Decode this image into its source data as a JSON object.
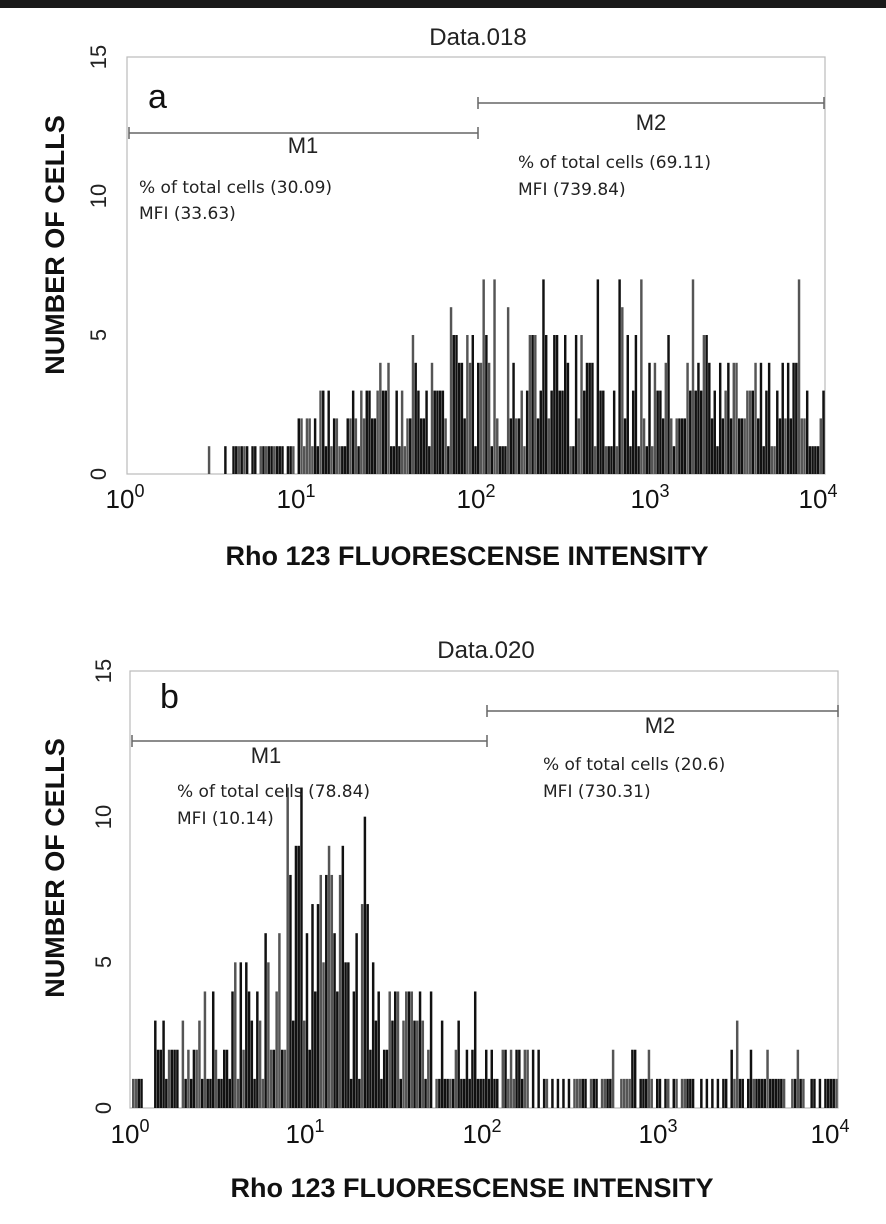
{
  "chart_data": [
    {
      "type": "bar",
      "panel_label": "a",
      "title": "Data.018",
      "xlabel": "Rho 123 FLUORESCENSE INTENSITY",
      "ylabel": "NUMBER OF CELLS",
      "x_scale": "log10",
      "xlim": [
        1,
        10000
      ],
      "ylim": [
        0,
        15
      ],
      "x_ticks": [
        {
          "base": "10",
          "exp": "0"
        },
        {
          "base": "10",
          "exp": "1"
        },
        {
          "base": "10",
          "exp": "2"
        },
        {
          "base": "10",
          "exp": "3"
        },
        {
          "base": "10",
          "exp": "4"
        }
      ],
      "y_ticks": [
        "0",
        "5",
        "10",
        "15"
      ],
      "markers": [
        {
          "label": "M1",
          "range": [
            1,
            100
          ],
          "level": 12.2,
          "lines": [
            "% of total cells (30.09)",
            "MFI (33.63)"
          ]
        },
        {
          "label": "M2",
          "range": [
            100,
            10000
          ],
          "level": 13.3,
          "lines": [
            "% of total cells (69.11)",
            "MFI (739.84)"
          ]
        }
      ],
      "histogram": {
        "n_bins": 256,
        "profile": [
          [
            1,
            0
          ],
          [
            1.7,
            0.1
          ],
          [
            3,
            0.3
          ],
          [
            6,
            0.8
          ],
          [
            10,
            1.3
          ],
          [
            20,
            2.0
          ],
          [
            40,
            2.5
          ],
          [
            100,
            2.9
          ],
          [
            300,
            3.1
          ],
          [
            1000,
            2.9
          ],
          [
            3000,
            2.5
          ],
          [
            10000,
            2.2
          ]
        ],
        "peak_max": 7
      }
    },
    {
      "type": "bar",
      "panel_label": "b",
      "title": "Data.020",
      "xlabel": "Rho 123 FLUORESCENSE INTENSITY",
      "ylabel": "NUMBER OF CELLS",
      "x_scale": "log10",
      "xlim": [
        1,
        10000
      ],
      "ylim": [
        0,
        15
      ],
      "x_ticks": [
        {
          "base": "10",
          "exp": "0"
        },
        {
          "base": "10",
          "exp": "1"
        },
        {
          "base": "10",
          "exp": "2"
        },
        {
          "base": "10",
          "exp": "3"
        },
        {
          "base": "10",
          "exp": "4"
        }
      ],
      "y_ticks": [
        "0",
        "5",
        "10",
        "15"
      ],
      "markers": [
        {
          "label": "M1",
          "range": [
            1,
            100
          ],
          "level": 12.2,
          "lines": [
            "% of total cells (78.84)",
            "MFI (10.14)"
          ]
        },
        {
          "label": "M2",
          "range": [
            100,
            10000
          ],
          "level": 13.3,
          "lines": [
            "% of total cells (20.6)",
            "MFI (730.31)"
          ]
        }
      ],
      "histogram": {
        "n_bins": 256,
        "profile": [
          [
            1,
            1.2
          ],
          [
            2,
            1.5
          ],
          [
            4,
            3.0
          ],
          [
            7,
            5.0
          ],
          [
            12,
            5.6
          ],
          [
            20,
            4.4
          ],
          [
            35,
            2.6
          ],
          [
            60,
            1.8
          ],
          [
            100,
            1.3
          ],
          [
            300,
            0.9
          ],
          [
            1000,
            0.8
          ],
          [
            3000,
            0.9
          ],
          [
            10000,
            0.8
          ]
        ],
        "peak_max": 11
      }
    }
  ]
}
